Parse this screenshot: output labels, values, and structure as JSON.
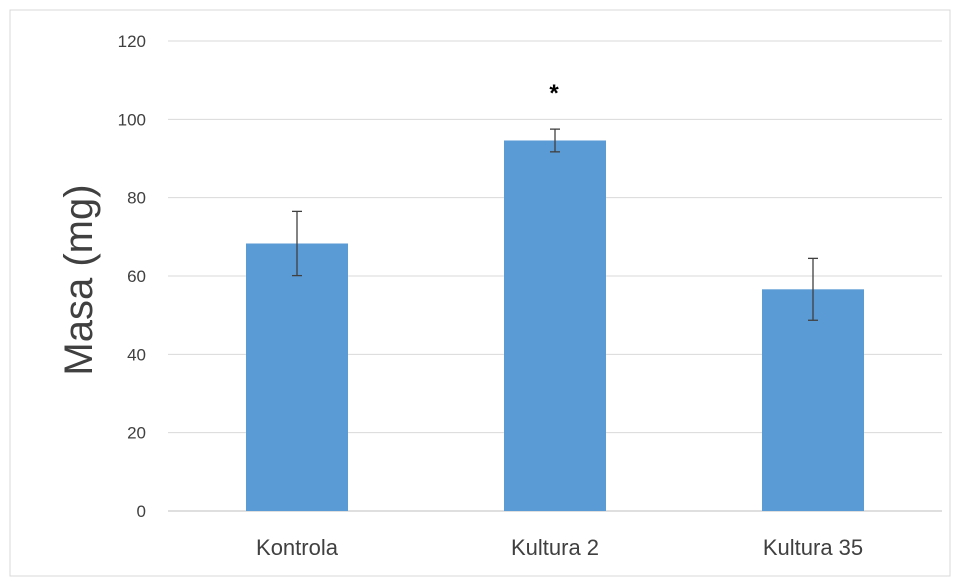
{
  "chart_data": {
    "type": "bar",
    "title": "",
    "xlabel": "",
    "ylabel": "Masa (mg)",
    "ylim": [
      0,
      120
    ],
    "yticks": [
      0,
      20,
      40,
      60,
      80,
      100,
      120
    ],
    "grid": true,
    "legend": "none",
    "categories": [
      "Kontrola",
      "Kultura 2",
      "Kultura 35"
    ],
    "values": [
      68.3,
      94.6,
      56.6
    ],
    "error": [
      8.2,
      2.9,
      7.9
    ],
    "annotations": [
      {
        "category": "Kultura 2",
        "text": "*"
      }
    ],
    "colors": {
      "bar": "#5b9bd5",
      "grid": "#d9d9d9",
      "axis": "#bfbfbf",
      "error": "#404040",
      "text": "#404040"
    }
  }
}
